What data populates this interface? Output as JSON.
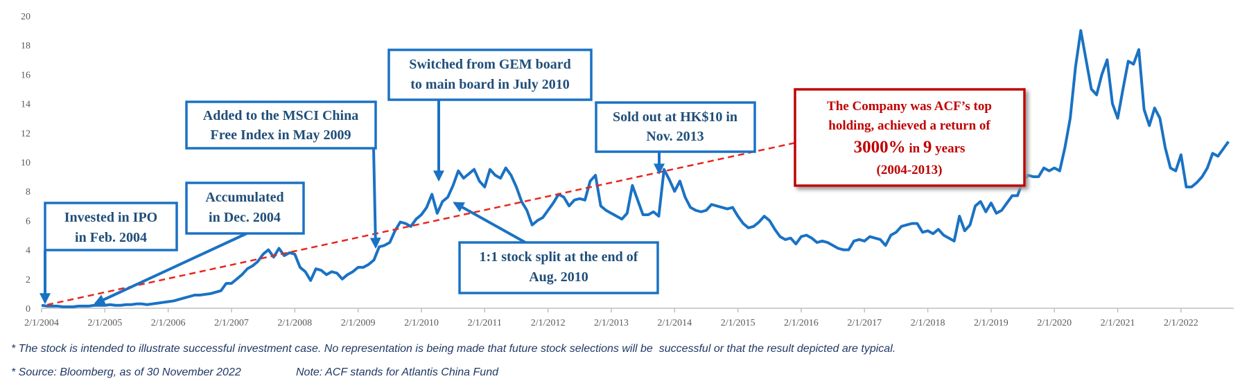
{
  "chart_data": {
    "type": "line",
    "x": [
      "2/1/2004",
      "3/1/2004",
      "4/1/2004",
      "5/1/2004",
      "6/1/2004",
      "7/1/2004",
      "8/1/2004",
      "9/1/2004",
      "10/1/2004",
      "11/1/2004",
      "12/1/2004",
      "1/1/2005",
      "2/1/2005",
      "3/1/2005",
      "4/1/2005",
      "5/1/2005",
      "6/1/2005",
      "7/1/2005",
      "8/1/2005",
      "9/1/2005",
      "10/1/2005",
      "11/1/2005",
      "12/1/2005",
      "1/1/2006",
      "2/1/2006",
      "3/1/2006",
      "4/1/2006",
      "5/1/2006",
      "6/1/2006",
      "7/1/2006",
      "8/1/2006",
      "9/1/2006",
      "10/1/2006",
      "11/1/2006",
      "12/1/2006",
      "1/1/2007",
      "2/1/2007",
      "3/1/2007",
      "4/1/2007",
      "5/1/2007",
      "6/1/2007",
      "7/1/2007",
      "8/1/2007",
      "9/1/2007",
      "10/1/2007",
      "11/1/2007",
      "12/1/2007",
      "1/1/2008",
      "2/1/2008",
      "3/1/2008",
      "4/1/2008",
      "5/1/2008",
      "6/1/2008",
      "7/1/2008",
      "8/1/2008",
      "9/1/2008",
      "10/1/2008",
      "11/1/2008",
      "12/1/2008",
      "1/1/2009",
      "2/1/2009",
      "3/1/2009",
      "4/1/2009",
      "5/1/2009",
      "6/1/2009",
      "7/1/2009",
      "8/1/2009",
      "9/1/2009",
      "10/1/2009",
      "11/1/2009",
      "12/1/2009",
      "1/1/2010",
      "2/1/2010",
      "3/1/2010",
      "4/1/2010",
      "5/1/2010",
      "6/1/2010",
      "7/1/2010",
      "8/1/2010",
      "9/1/2010",
      "10/1/2010",
      "11/1/2010",
      "12/1/2010",
      "1/1/2011",
      "2/1/2011",
      "3/1/2011",
      "4/1/2011",
      "5/1/2011",
      "6/1/2011",
      "7/1/2011",
      "8/1/2011",
      "9/1/2011",
      "10/1/2011",
      "11/1/2011",
      "12/1/2011",
      "1/1/2012",
      "2/1/2012",
      "3/1/2012",
      "4/1/2012",
      "5/1/2012",
      "6/1/2012",
      "7/1/2012",
      "8/1/2012",
      "9/1/2012",
      "10/1/2012",
      "11/1/2012",
      "12/1/2012",
      "1/1/2013",
      "2/1/2013",
      "3/1/2013",
      "4/1/2013",
      "5/1/2013",
      "6/1/2013",
      "7/1/2013",
      "8/1/2013",
      "9/1/2013",
      "10/1/2013",
      "11/1/2013",
      "12/1/2013",
      "1/1/2014",
      "2/1/2014",
      "3/1/2014",
      "4/1/2014",
      "5/1/2014",
      "6/1/2014",
      "7/1/2014",
      "8/1/2014",
      "9/1/2014",
      "10/1/2014",
      "11/1/2014",
      "12/1/2014",
      "1/1/2015",
      "2/1/2015",
      "3/1/2015",
      "4/1/2015",
      "5/1/2015",
      "6/1/2015",
      "7/1/2015",
      "8/1/2015",
      "9/1/2015",
      "10/1/2015",
      "11/1/2015",
      "12/1/2015",
      "1/1/2016",
      "2/1/2016",
      "3/1/2016",
      "4/1/2016",
      "5/1/2016",
      "6/1/2016",
      "7/1/2016",
      "8/1/2016",
      "9/1/2016",
      "10/1/2016",
      "11/1/2016",
      "12/1/2016",
      "1/1/2017",
      "2/1/2017",
      "3/1/2017",
      "4/1/2017",
      "5/1/2017",
      "6/1/2017",
      "7/1/2017",
      "8/1/2017",
      "9/1/2017",
      "10/1/2017",
      "11/1/2017",
      "12/1/2017",
      "1/1/2018",
      "2/1/2018",
      "3/1/2018",
      "4/1/2018",
      "5/1/2018",
      "6/1/2018",
      "7/1/2018",
      "8/1/2018",
      "9/1/2018",
      "10/1/2018",
      "11/1/2018",
      "12/1/2018",
      "1/1/2019",
      "2/1/2019",
      "3/1/2019",
      "4/1/2019",
      "5/1/2019",
      "6/1/2019",
      "7/1/2019",
      "8/1/2019",
      "9/1/2019",
      "10/1/2019",
      "11/1/2019",
      "12/1/2019",
      "1/1/2020",
      "2/1/2020",
      "3/1/2020",
      "4/1/2020",
      "5/1/2020",
      "6/1/2020",
      "7/1/2020",
      "8/1/2020",
      "9/1/2020",
      "10/1/2020",
      "11/1/2020",
      "12/1/2020",
      "1/1/2021",
      "2/1/2021",
      "3/1/2021",
      "4/1/2021",
      "5/1/2021",
      "6/1/2021",
      "7/1/2021",
      "8/1/2021",
      "9/1/2021",
      "10/1/2021",
      "11/1/2021",
      "12/1/2021",
      "1/1/2022",
      "2/1/2022",
      "3/1/2022",
      "4/1/2022",
      "5/1/2022",
      "6/1/2022",
      "7/1/2022",
      "8/1/2022",
      "9/1/2022",
      "10/1/2022",
      "11/1/2022"
    ],
    "series": [
      {
        "color": "#1a72c4",
        "values": [
          0.2,
          0.15,
          0.15,
          0.15,
          0.1,
          0.1,
          0.1,
          0.15,
          0.15,
          0.15,
          0.2,
          0.2,
          0.2,
          0.25,
          0.2,
          0.2,
          0.25,
          0.25,
          0.3,
          0.3,
          0.25,
          0.3,
          0.35,
          0.4,
          0.45,
          0.5,
          0.6,
          0.7,
          0.8,
          0.9,
          0.9,
          0.95,
          1.0,
          1.1,
          1.2,
          1.7,
          1.7,
          2.0,
          2.3,
          2.7,
          2.9,
          3.2,
          3.7,
          4.0,
          3.5,
          4.1,
          3.6,
          3.8,
          3.7,
          2.8,
          2.5,
          1.9,
          2.7,
          2.6,
          2.3,
          2.5,
          2.4,
          2.0,
          2.3,
          2.5,
          2.8,
          2.8,
          3.0,
          3.3,
          4.2,
          4.3,
          4.5,
          5.3,
          5.9,
          5.8,
          5.6,
          6.1,
          6.4,
          6.9,
          7.8,
          6.5,
          7.3,
          7.6,
          8.4,
          9.4,
          8.9,
          9.2,
          9.5,
          8.7,
          8.3,
          9.5,
          9.1,
          8.9,
          9.6,
          9.1,
          8.3,
          7.3,
          6.7,
          5.7,
          6.0,
          6.2,
          6.7,
          7.2,
          7.8,
          7.6,
          7.0,
          7.4,
          7.5,
          7.4,
          8.7,
          9.1,
          7.0,
          6.7,
          6.5,
          6.3,
          6.1,
          6.5,
          8.4,
          7.4,
          6.4,
          6.4,
          6.6,
          6.3,
          9.5,
          8.8,
          8.0,
          8.7,
          7.6,
          6.9,
          6.7,
          6.6,
          6.7,
          7.1,
          7.0,
          6.9,
          6.8,
          6.9,
          6.3,
          5.8,
          5.5,
          5.6,
          5.9,
          6.3,
          6.0,
          5.4,
          4.9,
          4.7,
          4.8,
          4.4,
          4.9,
          5.0,
          4.8,
          4.5,
          4.6,
          4.5,
          4.3,
          4.1,
          4.0,
          4.0,
          4.6,
          4.7,
          4.6,
          4.9,
          4.8,
          4.7,
          4.3,
          5.0,
          5.2,
          5.6,
          5.7,
          5.8,
          5.8,
          5.2,
          5.3,
          5.1,
          5.4,
          5.0,
          4.8,
          4.6,
          6.3,
          5.3,
          5.7,
          7.0,
          7.3,
          6.6,
          7.2,
          6.5,
          6.7,
          7.2,
          7.7,
          7.7,
          8.7,
          9.1,
          9.0,
          9.0,
          9.6,
          9.4,
          9.6,
          9.4,
          11.0,
          13.0,
          16.5,
          19.0,
          17.0,
          15.0,
          14.6,
          16.0,
          17.0,
          14.0,
          13.0,
          15.0,
          16.9,
          16.7,
          17.7,
          13.6,
          12.5,
          13.7,
          13.0,
          11.0,
          9.6,
          9.4,
          10.5,
          8.3,
          8.3,
          8.6,
          9.0,
          9.6,
          10.6,
          10.4,
          10.9,
          11.4
        ]
      }
    ],
    "xlim": [
      "2/1/2004",
      "12/1/2022"
    ],
    "xticks": [
      "2/1/2004",
      "2/1/2005",
      "2/1/2006",
      "2/1/2007",
      "2/1/2008",
      "2/1/2009",
      "2/1/2010",
      "2/1/2011",
      "2/1/2012",
      "2/1/2013",
      "2/1/2014",
      "2/1/2015",
      "2/1/2016",
      "2/1/2017",
      "2/1/2018",
      "2/1/2019",
      "2/1/2020",
      "2/1/2021",
      "2/1/2022"
    ],
    "ylim": [
      0,
      20
    ],
    "yticks": [
      0,
      2,
      4,
      6,
      8,
      10,
      12,
      14,
      16,
      18,
      20
    ],
    "annotations": [
      {
        "lines": [
          "Invested in IPO",
          "in Feb. 2004"
        ]
      },
      {
        "lines": [
          "Accumulated",
          "in Dec. 2004"
        ]
      },
      {
        "lines": [
          "Added to the MSCI China",
          "Free Index in  May 2009"
        ]
      },
      {
        "lines": [
          "Switched from GEM board",
          "to main board in  July 2010"
        ]
      },
      {
        "lines": [
          "1:1 stock split at the end of",
          "Aug. 2010"
        ]
      },
      {
        "lines": [
          "Sold out at HK$10 in",
          "Nov. 2013"
        ]
      },
      {
        "lines": [
          "The Company was ACF’s top",
          "holding, achieved a return of"
        ],
        "emphasis": [
          "3000%",
          " in ",
          "9",
          " years"
        ],
        "note": "(2004-2013)"
      }
    ],
    "footnotes": [
      "* The stock is intended to illustrate successful investment case. No representation is being made that future stock selections will be  successful or that the result depicted are typical.",
      "* Source: Bloomberg, as of 30 November 2022",
      "Note: ACF stands for Atlantis China Fund"
    ]
  }
}
